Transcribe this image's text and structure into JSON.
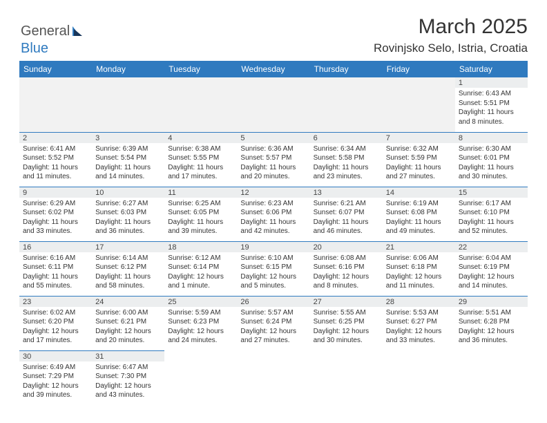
{
  "brand": {
    "part1": "General",
    "part2": "Blue"
  },
  "title": "March 2025",
  "location": "Rovinjsko Selo, Istria, Croatia",
  "colors": {
    "header_bg": "#2f7abf",
    "header_fg": "#ffffff",
    "border": "#2f7abf",
    "daynum_bg": "#eceeef",
    "empty_bg": "#f2f2f2"
  },
  "day_headers": [
    "Sunday",
    "Monday",
    "Tuesday",
    "Wednesday",
    "Thursday",
    "Friday",
    "Saturday"
  ],
  "weeks": [
    [
      {
        "empty": true
      },
      {
        "empty": true
      },
      {
        "empty": true
      },
      {
        "empty": true
      },
      {
        "empty": true
      },
      {
        "empty": true
      },
      {
        "n": "1",
        "sunrise": "6:43 AM",
        "sunset": "5:51 PM",
        "daylight": "11 hours and 8 minutes."
      }
    ],
    [
      {
        "n": "2",
        "sunrise": "6:41 AM",
        "sunset": "5:52 PM",
        "daylight": "11 hours and 11 minutes."
      },
      {
        "n": "3",
        "sunrise": "6:39 AM",
        "sunset": "5:54 PM",
        "daylight": "11 hours and 14 minutes."
      },
      {
        "n": "4",
        "sunrise": "6:38 AM",
        "sunset": "5:55 PM",
        "daylight": "11 hours and 17 minutes."
      },
      {
        "n": "5",
        "sunrise": "6:36 AM",
        "sunset": "5:57 PM",
        "daylight": "11 hours and 20 minutes."
      },
      {
        "n": "6",
        "sunrise": "6:34 AM",
        "sunset": "5:58 PM",
        "daylight": "11 hours and 23 minutes."
      },
      {
        "n": "7",
        "sunrise": "6:32 AM",
        "sunset": "5:59 PM",
        "daylight": "11 hours and 27 minutes."
      },
      {
        "n": "8",
        "sunrise": "6:30 AM",
        "sunset": "6:01 PM",
        "daylight": "11 hours and 30 minutes."
      }
    ],
    [
      {
        "n": "9",
        "sunrise": "6:29 AM",
        "sunset": "6:02 PM",
        "daylight": "11 hours and 33 minutes."
      },
      {
        "n": "10",
        "sunrise": "6:27 AM",
        "sunset": "6:03 PM",
        "daylight": "11 hours and 36 minutes."
      },
      {
        "n": "11",
        "sunrise": "6:25 AM",
        "sunset": "6:05 PM",
        "daylight": "11 hours and 39 minutes."
      },
      {
        "n": "12",
        "sunrise": "6:23 AM",
        "sunset": "6:06 PM",
        "daylight": "11 hours and 42 minutes."
      },
      {
        "n": "13",
        "sunrise": "6:21 AM",
        "sunset": "6:07 PM",
        "daylight": "11 hours and 46 minutes."
      },
      {
        "n": "14",
        "sunrise": "6:19 AM",
        "sunset": "6:08 PM",
        "daylight": "11 hours and 49 minutes."
      },
      {
        "n": "15",
        "sunrise": "6:17 AM",
        "sunset": "6:10 PM",
        "daylight": "11 hours and 52 minutes."
      }
    ],
    [
      {
        "n": "16",
        "sunrise": "6:16 AM",
        "sunset": "6:11 PM",
        "daylight": "11 hours and 55 minutes."
      },
      {
        "n": "17",
        "sunrise": "6:14 AM",
        "sunset": "6:12 PM",
        "daylight": "11 hours and 58 minutes."
      },
      {
        "n": "18",
        "sunrise": "6:12 AM",
        "sunset": "6:14 PM",
        "daylight": "12 hours and 1 minute."
      },
      {
        "n": "19",
        "sunrise": "6:10 AM",
        "sunset": "6:15 PM",
        "daylight": "12 hours and 5 minutes."
      },
      {
        "n": "20",
        "sunrise": "6:08 AM",
        "sunset": "6:16 PM",
        "daylight": "12 hours and 8 minutes."
      },
      {
        "n": "21",
        "sunrise": "6:06 AM",
        "sunset": "6:18 PM",
        "daylight": "12 hours and 11 minutes."
      },
      {
        "n": "22",
        "sunrise": "6:04 AM",
        "sunset": "6:19 PM",
        "daylight": "12 hours and 14 minutes."
      }
    ],
    [
      {
        "n": "23",
        "sunrise": "6:02 AM",
        "sunset": "6:20 PM",
        "daylight": "12 hours and 17 minutes."
      },
      {
        "n": "24",
        "sunrise": "6:00 AM",
        "sunset": "6:21 PM",
        "daylight": "12 hours and 20 minutes."
      },
      {
        "n": "25",
        "sunrise": "5:59 AM",
        "sunset": "6:23 PM",
        "daylight": "12 hours and 24 minutes."
      },
      {
        "n": "26",
        "sunrise": "5:57 AM",
        "sunset": "6:24 PM",
        "daylight": "12 hours and 27 minutes."
      },
      {
        "n": "27",
        "sunrise": "5:55 AM",
        "sunset": "6:25 PM",
        "daylight": "12 hours and 30 minutes."
      },
      {
        "n": "28",
        "sunrise": "5:53 AM",
        "sunset": "6:27 PM",
        "daylight": "12 hours and 33 minutes."
      },
      {
        "n": "29",
        "sunrise": "5:51 AM",
        "sunset": "6:28 PM",
        "daylight": "12 hours and 36 minutes."
      }
    ],
    [
      {
        "n": "30",
        "sunrise": "6:49 AM",
        "sunset": "7:29 PM",
        "daylight": "12 hours and 39 minutes."
      },
      {
        "n": "31",
        "sunrise": "6:47 AM",
        "sunset": "7:30 PM",
        "daylight": "12 hours and 43 minutes."
      },
      {
        "empty": true,
        "blank": true
      },
      {
        "empty": true,
        "blank": true
      },
      {
        "empty": true,
        "blank": true
      },
      {
        "empty": true,
        "blank": true
      },
      {
        "empty": true,
        "blank": true
      }
    ]
  ]
}
